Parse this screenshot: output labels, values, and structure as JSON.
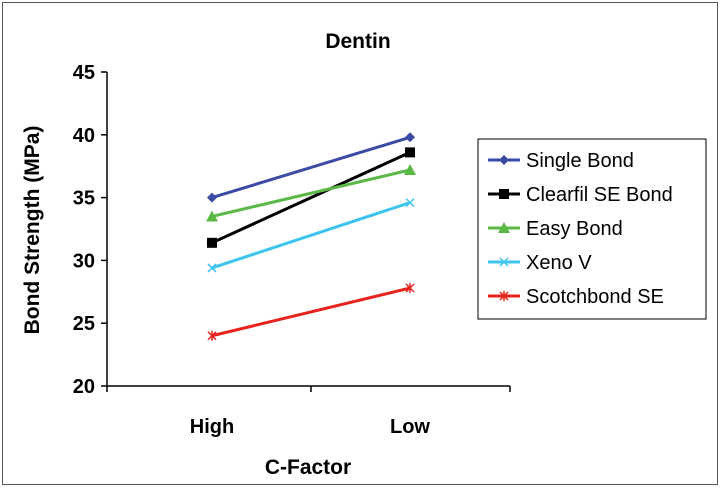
{
  "chart_data": {
    "type": "line",
    "title": "Dentin",
    "xlabel": "C-Factor",
    "ylabel": "Bond Strength (MPa)",
    "categories": [
      "High",
      "Low"
    ],
    "ylim": [
      20,
      45
    ],
    "yticks": [
      20,
      25,
      30,
      35,
      40,
      45
    ],
    "grid": false,
    "legend_position": "right",
    "series": [
      {
        "name": "Single Bond",
        "values": [
          35.0,
          39.8
        ],
        "color": "#3b4ba3",
        "marker": "diamond"
      },
      {
        "name": "Clearfil SE Bond",
        "values": [
          31.4,
          38.6
        ],
        "color": "#000000",
        "marker": "square"
      },
      {
        "name": "Easy Bond",
        "values": [
          33.5,
          37.2
        ],
        "color": "#5ab946",
        "marker": "triangle"
      },
      {
        "name": "Xeno V",
        "values": [
          29.4,
          34.6
        ],
        "color": "#3cc3ee",
        "marker": "x"
      },
      {
        "name": "Scotchbond SE",
        "values": [
          24.0,
          27.8
        ],
        "color": "#e8231e",
        "marker": "star"
      }
    ]
  }
}
